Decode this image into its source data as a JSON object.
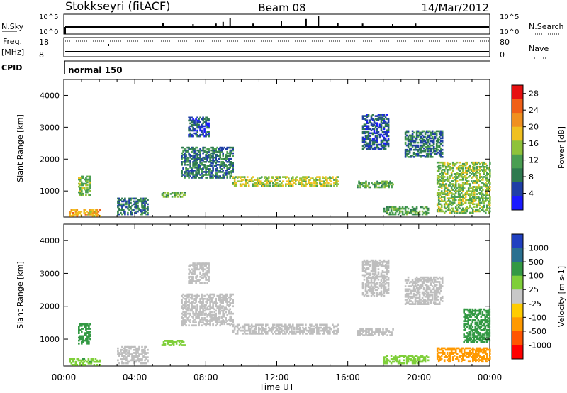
{
  "header": {
    "station": "Stokkseyri (fitACF)",
    "beam": "Beam 08",
    "date": "14/Mar/2012"
  },
  "colors": {
    "power": [
      "#1a1aff",
      "#1f3fa6",
      "#2f7a50",
      "#4a9e52",
      "#8fc23a",
      "#f0c020",
      "#f09020",
      "#f06018",
      "#e61010"
    ],
    "velocity": [
      "#ff0000",
      "#ff5500",
      "#ff9900",
      "#ffcc00",
      "#c8c8c8",
      "#7fcf3a",
      "#339944",
      "#2a7090",
      "#2040c0"
    ],
    "ground_scatter": "#bebebe"
  },
  "strips": {
    "nsky": {
      "label": "N.Sky",
      "left_ticks": [
        "10^5",
        "10^0"
      ],
      "right_ticks": [
        "10^5",
        "10^0"
      ],
      "right_label": "N.Search",
      "spikes": [
        [
          5.5,
          0.35
        ],
        [
          7.2,
          0.25
        ],
        [
          8.5,
          0.3
        ],
        [
          8.9,
          0.45
        ],
        [
          9.3,
          0.75
        ],
        [
          10.6,
          0.3
        ],
        [
          12.2,
          0.55
        ],
        [
          13.6,
          0.7
        ],
        [
          14.3,
          0.95
        ],
        [
          15.4,
          0.35
        ],
        [
          16.8,
          0.3
        ],
        [
          18.5,
          0.25
        ],
        [
          19.8,
          0.3
        ]
      ]
    },
    "freq": {
      "label_line1": "Freq.",
      "label_line2": "[MHz]",
      "left_ticks": [
        "18",
        "8"
      ],
      "right_ticks": [
        "80",
        "0"
      ],
      "right_label": "Nave"
    },
    "cpid": {
      "label": "CPID",
      "program": "normal 150"
    }
  },
  "chart_data": [
    {
      "type": "heatmap",
      "title": "Power",
      "xlabel": "",
      "ylabel": "Slant Range [km]",
      "xlim": [
        "00:00",
        "24:00"
      ],
      "ylim": [
        180,
        4500
      ],
      "colorbar": {
        "label": "Power [dB]",
        "ticks": [
          4,
          8,
          12,
          16,
          20,
          24,
          28
        ],
        "range": [
          0,
          30
        ]
      },
      "regions": [
        {
          "t0": 0.3,
          "t1": 2.0,
          "r0": 200,
          "r1": 420,
          "v": 20
        },
        {
          "t0": 0.8,
          "t1": 1.5,
          "r0": 850,
          "r1": 1450,
          "v": 14
        },
        {
          "t0": 3.0,
          "t1": 4.7,
          "r0": 250,
          "r1": 750,
          "v": 8
        },
        {
          "t0": 5.5,
          "t1": 6.8,
          "r0": 800,
          "r1": 950,
          "v": 12
        },
        {
          "t0": 6.6,
          "t1": 9.5,
          "r0": 1400,
          "r1": 2350,
          "v": 8
        },
        {
          "t0": 7.0,
          "t1": 8.2,
          "r0": 2700,
          "r1": 3300,
          "v": 6
        },
        {
          "t0": 9.5,
          "t1": 15.5,
          "r0": 1150,
          "r1": 1450,
          "v": 16
        },
        {
          "t0": 16.5,
          "t1": 18.5,
          "r0": 1100,
          "r1": 1300,
          "v": 12
        },
        {
          "t0": 16.8,
          "t1": 18.3,
          "r0": 2300,
          "r1": 3400,
          "v": 6
        },
        {
          "t0": 19.2,
          "t1": 21.3,
          "r0": 2050,
          "r1": 2900,
          "v": 8
        },
        {
          "t0": 18.0,
          "t1": 20.5,
          "r0": 250,
          "r1": 500,
          "v": 12
        },
        {
          "t0": 21.0,
          "t1": 24.0,
          "r0": 300,
          "r1": 1900,
          "v": 14
        }
      ]
    },
    {
      "type": "heatmap",
      "title": "Velocity",
      "xlabel": "Time UT",
      "ylabel": "Slant Range [km]",
      "xlim": [
        "00:00",
        "24:00"
      ],
      "ylim": [
        180,
        4500
      ],
      "xticks": [
        "00:00",
        "04:00",
        "08:00",
        "12:00",
        "16:00",
        "20:00",
        "00:00"
      ],
      "yticks": [
        1000,
        2000,
        3000,
        4000
      ],
      "colorbar": {
        "label": "Velocity [m s-1]",
        "ticks": [
          1000,
          500,
          100,
          25,
          -25,
          -100,
          -500,
          -1000
        ]
      },
      "regions": [
        {
          "t0": 0.3,
          "t1": 2.0,
          "r0": 200,
          "r1": 420,
          "v": 80
        },
        {
          "t0": 0.8,
          "t1": 1.5,
          "r0": 850,
          "r1": 1450,
          "v": 300
        },
        {
          "t0": 3.0,
          "t1": 4.7,
          "r0": 250,
          "r1": 750,
          "v": 0
        },
        {
          "t0": 5.5,
          "t1": 6.8,
          "r0": 800,
          "r1": 950,
          "v": 60
        },
        {
          "t0": 6.6,
          "t1": 9.5,
          "r0": 1400,
          "r1": 2350,
          "v": 0
        },
        {
          "t0": 7.0,
          "t1": 8.2,
          "r0": 2700,
          "r1": 3300,
          "v": 0
        },
        {
          "t0": 9.5,
          "t1": 15.5,
          "r0": 1150,
          "r1": 1450,
          "v": 0
        },
        {
          "t0": 16.5,
          "t1": 18.5,
          "r0": 1100,
          "r1": 1300,
          "v": 0
        },
        {
          "t0": 16.8,
          "t1": 18.3,
          "r0": 2300,
          "r1": 3400,
          "v": 0
        },
        {
          "t0": 19.2,
          "t1": 21.3,
          "r0": 2050,
          "r1": 2900,
          "v": 0
        },
        {
          "t0": 18.0,
          "t1": 20.5,
          "r0": 250,
          "r1": 500,
          "v": 60
        },
        {
          "t0": 21.0,
          "t1": 24.0,
          "r0": 300,
          "r1": 750,
          "v": -200
        },
        {
          "t0": 22.5,
          "t1": 24.0,
          "r0": 900,
          "r1": 1900,
          "v": 300
        }
      ]
    }
  ]
}
